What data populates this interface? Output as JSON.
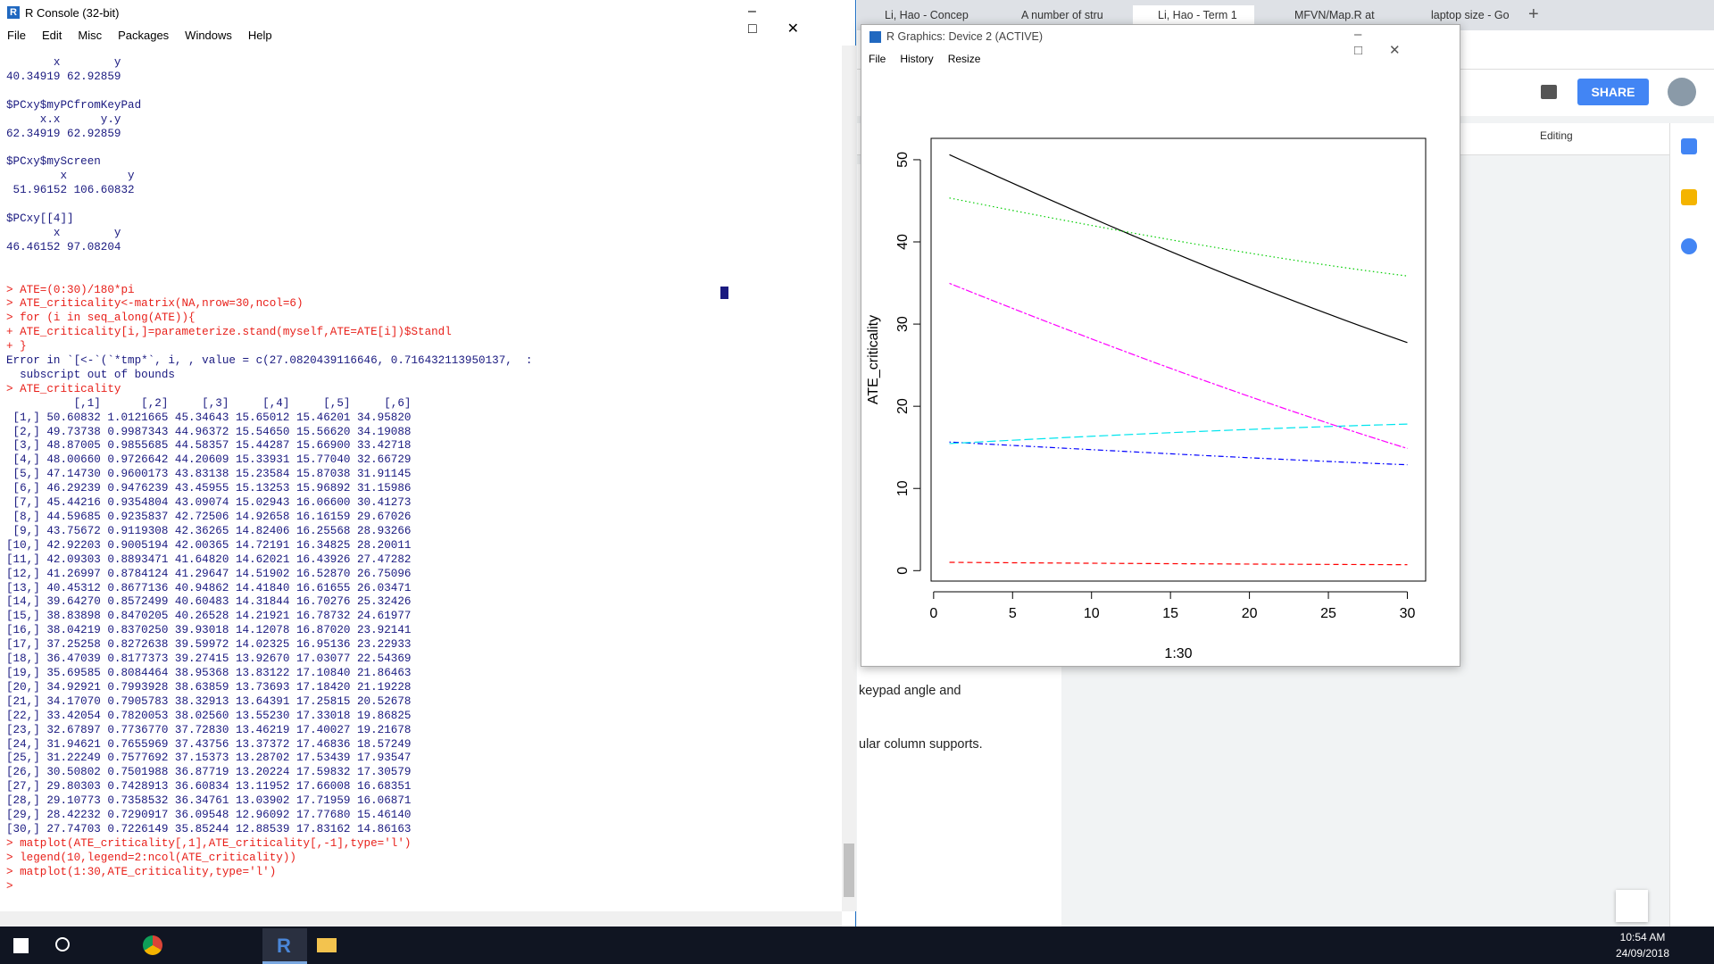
{
  "console_window": {
    "title": "R Console (32-bit)",
    "menu": [
      "File",
      "Edit",
      "Misc",
      "Packages",
      "Windows",
      "Help"
    ],
    "blocks": [
      {
        "color": "#1a1a80",
        "lines": [
          "       x        y",
          "40.34919 62.92859"
        ]
      },
      {
        "color": "#1a1a80",
        "lines": [
          "$PCxy$myPCfromKeyPad",
          "     x.x      y.y",
          "62.34919 62.92859"
        ]
      },
      {
        "color": "#1a1a80",
        "lines": [
          "$PCxy$myScreen",
          "        x         y",
          " 51.96152 106.60832"
        ]
      },
      {
        "color": "#1a1a80",
        "lines": [
          "$PCxy[[4]]",
          "       x        y",
          "46.46152 97.08204"
        ]
      },
      {
        "color": "#e8201a",
        "lines": [
          "> ATE=(0:30)/180*pi",
          "> ATE_criticality<-matrix(NA,nrow=30,ncol=6)",
          "> for (i in seq_along(ATE)){",
          "+ ATE_criticality[i,]=parameterize.stand(myself,ATE=ATE[i])$Standl",
          "+ }"
        ]
      },
      {
        "color": "#1a1a80",
        "lines": [
          "Error in `[<-`(`*tmp*`, i, , value = c(27.0820439116646, 0.716432113950137,  :",
          "  subscript out of bounds"
        ]
      },
      {
        "color": "#e8201a",
        "lines": [
          "> ATE_criticality"
        ]
      },
      {
        "color": "#1a1a80",
        "lines": [
          "          [,1]      [,2]     [,3]     [,4]     [,5]     [,6]",
          " [1,] 50.60832 1.0121665 45.34643 15.65012 15.46201 34.95820",
          " [2,] 49.73738 0.9987343 44.96372 15.54650 15.56620 34.19088",
          " [3,] 48.87005 0.9855685 44.58357 15.44287 15.66900 33.42718",
          " [4,] 48.00660 0.9726642 44.20609 15.33931 15.77040 32.66729",
          " [5,] 47.14730 0.9600173 43.83138 15.23584 15.87038 31.91145",
          " [6,] 46.29239 0.9476239 43.45955 15.13253 15.96892 31.15986",
          " [7,] 45.44216 0.9354804 43.09074 15.02943 16.06600 30.41273",
          " [8,] 44.59685 0.9235837 42.72506 14.92658 16.16159 29.67026",
          " [9,] 43.75672 0.9119308 42.36265 14.82406 16.25568 28.93266",
          "[10,] 42.92203 0.9005194 42.00365 14.72191 16.34825 28.20011",
          "[11,] 42.09303 0.8893471 41.64820 14.62021 16.43926 27.47282",
          "[12,] 41.26997 0.8784124 41.29647 14.51902 16.52870 26.75096",
          "[13,] 40.45312 0.8677136 40.94862 14.41840 16.61655 26.03471",
          "[14,] 39.64270 0.8572499 40.60483 14.31844 16.70276 25.32426",
          "[15,] 38.83898 0.8470205 40.26528 14.21921 16.78732 24.61977",
          "[16,] 38.04219 0.8370250 39.93018 14.12078 16.87020 23.92141",
          "[17,] 37.25258 0.8272638 39.59972 14.02325 16.95136 23.22933",
          "[18,] 36.47039 0.8177373 39.27415 13.92670 17.03077 22.54369",
          "[19,] 35.69585 0.8084464 38.95368 13.83122 17.10840 21.86463",
          "[20,] 34.92921 0.7993928 38.63859 13.73693 17.18420 21.19228",
          "[21,] 34.17070 0.7905783 38.32913 13.64391 17.25815 20.52678",
          "[22,] 33.42054 0.7820053 38.02560 13.55230 17.33018 19.86825",
          "[23,] 32.67897 0.7736770 37.72830 13.46219 17.40027 19.21678",
          "[24,] 31.94621 0.7655969 37.43756 13.37372 17.46836 18.57249",
          "[25,] 31.22249 0.7577692 37.15373 13.28702 17.53439 17.93547",
          "[26,] 30.50802 0.7501988 36.87719 13.20224 17.59832 17.30579",
          "[27,] 29.80303 0.7428913 36.60834 13.11952 17.66008 16.68351",
          "[28,] 29.10773 0.7358532 36.34761 13.03902 17.71959 16.06871",
          "[29,] 28.42232 0.7290917 36.09548 12.96092 17.77680 15.46140",
          "[30,] 27.74703 0.7226149 35.85244 12.88539 17.83162 14.86163"
        ]
      },
      {
        "color": "#e8201a",
        "lines": [
          "> matplot(ATE_criticality[,1],ATE_criticality[,-1],type='l')",
          "> legend(10,legend=2:ncol(ATE_criticality))",
          "> matplot(1:30,ATE_criticality,type='l')",
          "> "
        ]
      }
    ]
  },
  "graphics_window": {
    "title": "R Graphics: Device 2 (ACTIVE)",
    "menu": [
      "File",
      "History",
      "Resize"
    ]
  },
  "chart_data": {
    "type": "line",
    "x_label": "1:30",
    "y_label": "ATE_criticality",
    "x": [
      1,
      2,
      3,
      4,
      5,
      6,
      7,
      8,
      9,
      10,
      11,
      12,
      13,
      14,
      15,
      16,
      17,
      18,
      19,
      20,
      21,
      22,
      23,
      24,
      25,
      26,
      27,
      28,
      29,
      30
    ],
    "xlim": [
      -0.16,
      31.16
    ],
    "xticks": [
      0,
      5,
      10,
      15,
      20,
      25,
      30
    ],
    "ylim": [
      -1.27,
      52.6
    ],
    "yticks": [
      0,
      10,
      20,
      30,
      40,
      50
    ],
    "series": [
      {
        "color": "#000000",
        "linestyle": "solid",
        "values": [
          50.60832,
          49.73738,
          48.87005,
          48.0066,
          47.1473,
          46.29239,
          45.44216,
          44.59685,
          43.75672,
          42.92203,
          42.09303,
          41.26997,
          40.45312,
          39.6427,
          38.83898,
          38.04219,
          37.25258,
          36.47039,
          35.69585,
          34.92921,
          34.1707,
          33.42054,
          32.67897,
          31.94621,
          31.22249,
          30.50802,
          29.80303,
          29.10773,
          28.42232,
          27.74703
        ]
      },
      {
        "color": "#ff0000",
        "linestyle": "dashed",
        "values": [
          1.0121665,
          0.9987343,
          0.9855685,
          0.9726642,
          0.9600173,
          0.9476239,
          0.9354804,
          0.9235837,
          0.9119308,
          0.9005194,
          0.8893471,
          0.8784124,
          0.8677136,
          0.8572499,
          0.8470205,
          0.837025,
          0.8272638,
          0.8177373,
          0.8084464,
          0.7993928,
          0.7905783,
          0.7820053,
          0.773677,
          0.7655969,
          0.7577692,
          0.7501988,
          0.7428913,
          0.7358532,
          0.7290917,
          0.7226149
        ]
      },
      {
        "color": "#00cd00",
        "linestyle": "dotted",
        "values": [
          45.34643,
          44.96372,
          44.58357,
          44.20609,
          43.83138,
          43.45955,
          43.09074,
          42.72506,
          42.36265,
          42.00365,
          41.6482,
          41.29647,
          40.94862,
          40.60483,
          40.26528,
          39.93018,
          39.59972,
          39.27415,
          38.95368,
          38.63859,
          38.32913,
          38.0256,
          37.7283,
          37.43756,
          37.15373,
          36.87719,
          36.60834,
          36.34761,
          36.09548,
          35.85244
        ]
      },
      {
        "color": "#0000ff",
        "linestyle": "dotdash",
        "values": [
          15.65012,
          15.5465,
          15.44287,
          15.33931,
          15.23584,
          15.13253,
          15.02943,
          14.92658,
          14.82406,
          14.72191,
          14.62021,
          14.51902,
          14.4184,
          14.31844,
          14.21921,
          14.12078,
          14.02325,
          13.9267,
          13.83122,
          13.73693,
          13.64391,
          13.5523,
          13.46219,
          13.37372,
          13.28702,
          13.20224,
          13.11952,
          13.03902,
          12.96092,
          12.88539
        ]
      },
      {
        "color": "#00e5ee",
        "linestyle": "longdash",
        "values": [
          15.46201,
          15.5662,
          15.669,
          15.7704,
          15.87038,
          15.96892,
          16.066,
          16.16159,
          16.25568,
          16.34825,
          16.43926,
          16.5287,
          16.61655,
          16.70276,
          16.78732,
          16.8702,
          16.95136,
          17.03077,
          17.1084,
          17.1842,
          17.25815,
          17.33018,
          17.40027,
          17.46836,
          17.53439,
          17.59832,
          17.66008,
          17.71959,
          17.7768,
          17.83162
        ]
      },
      {
        "color": "#ff00ff",
        "linestyle": "twodash",
        "values": [
          34.9582,
          34.19088,
          33.42718,
          32.66729,
          31.91145,
          31.15986,
          30.41273,
          29.67026,
          28.93266,
          28.20011,
          27.47282,
          26.75096,
          26.03471,
          25.32426,
          24.61977,
          23.92141,
          23.22933,
          22.54369,
          21.86463,
          21.19228,
          20.52678,
          19.86825,
          19.21678,
          18.57249,
          17.93547,
          17.30579,
          16.68351,
          16.06871,
          15.4614,
          14.86163
        ]
      }
    ]
  },
  "browser": {
    "tabs": [
      "Li, Hao - Concep",
      "A number of stru",
      "Li, Hao - Term 1",
      "MFVN/Map.R at",
      "laptop size - Go"
    ],
    "share": "SHARE",
    "mode": "Editing",
    "document_lines": [
      "keypad angle and",
      "ular column supports."
    ]
  },
  "taskbar": {
    "time": "10:54 AM",
    "date": "24/09/2018"
  }
}
